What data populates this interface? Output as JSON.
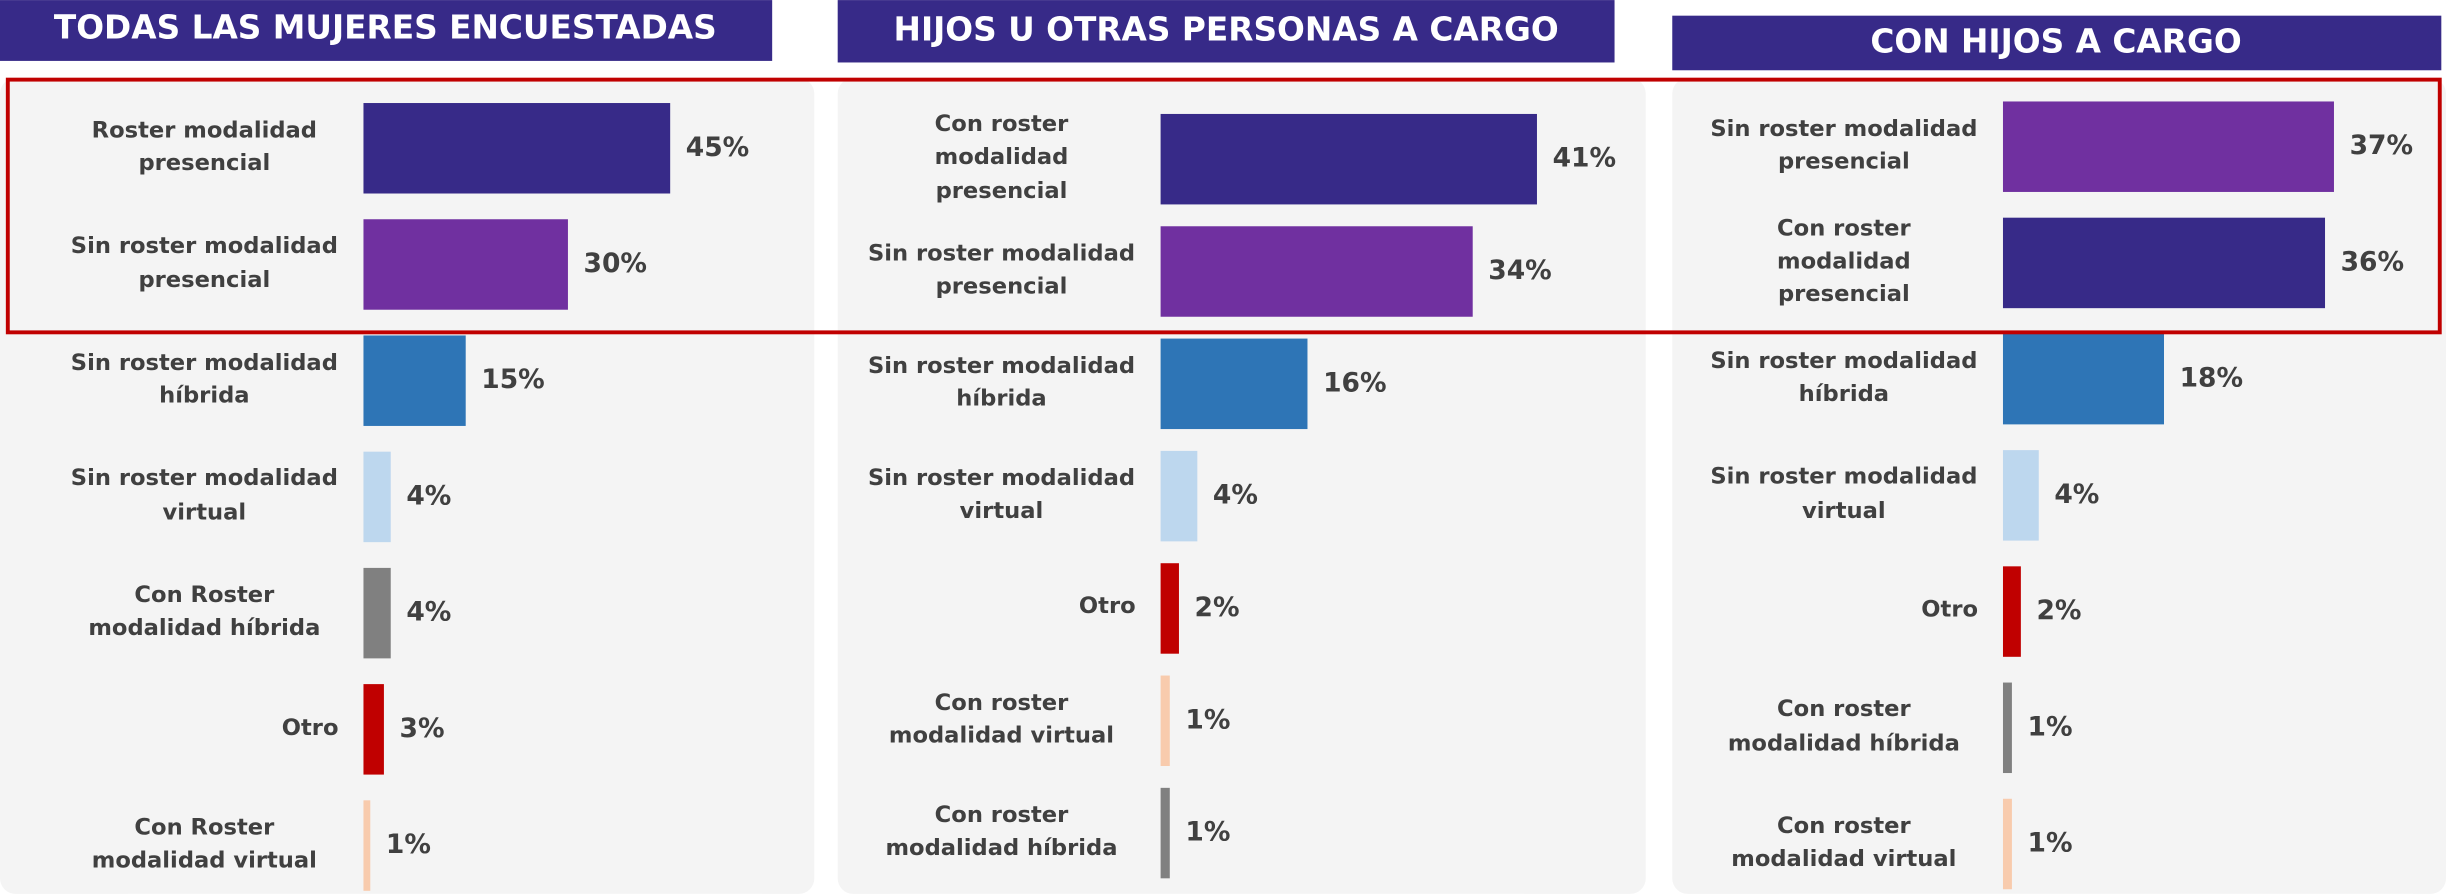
{
  "chart_data": [
    {
      "type": "bar",
      "orientation": "horizontal",
      "title": "TODAS  LAS MUJERES ENCUESTADAS",
      "categories": [
        "Roster modalidad presencial",
        "Sin roster modalidad presencial",
        "Sin roster modalidad híbrida",
        "Sin roster modalidad virtual",
        "Con Roster modalidad híbrida",
        "Otro",
        "Con Roster modalidad virtual"
      ],
      "values": [
        45,
        30,
        15,
        4,
        4,
        3,
        1
      ],
      "value_labels": [
        "45%",
        "30%",
        "15%",
        "4%",
        "4%",
        "3%",
        "1%"
      ],
      "colors": [
        "#372a88",
        "#7030a0",
        "#2e75b6",
        "#bdd7ee",
        "#808080",
        "#c00000",
        "#f8cbad"
      ],
      "xlim": [
        0,
        65
      ]
    },
    {
      "type": "bar",
      "orientation": "horizontal",
      "title": "HIJOS U OTRAS PERSONAS A CARGO",
      "categories": [
        "Con roster modalidad presencial",
        "Sin roster modalidad presencial",
        "Sin roster modalidad híbrida",
        "Sin roster modalidad virtual",
        "Otro",
        "Con roster modalidad virtual",
        "Con roster modalidad híbrida"
      ],
      "values": [
        41,
        34,
        16,
        4,
        2,
        1,
        1
      ],
      "value_labels": [
        "41%",
        "34%",
        "16%",
        "4%",
        "2%",
        "1%",
        "1%"
      ],
      "colors": [
        "#372a88",
        "#7030a0",
        "#2e75b6",
        "#bdd7ee",
        "#c00000",
        "#f8cbad",
        "#808080"
      ],
      "xlim": [
        0,
        52
      ]
    },
    {
      "type": "bar",
      "orientation": "horizontal",
      "title": "CON HIJOS A CARGO",
      "categories": [
        "Sin roster modalidad presencial",
        "Con roster modalidad presencial",
        "Sin roster modalidad híbrida",
        "Sin roster modalidad virtual",
        "Otro",
        "Con roster modalidad híbrida",
        "Con roster modalidad virtual"
      ],
      "values": [
        37,
        36,
        18,
        4,
        2,
        1,
        1
      ],
      "value_labels": [
        "37%",
        "36%",
        "18%",
        "4%",
        "2%",
        "1%",
        "1%"
      ],
      "colors": [
        "#7030a0",
        "#372a88",
        "#2e75b6",
        "#bdd7ee",
        "#c00000",
        "#808080",
        "#f8cbad"
      ],
      "xlim": [
        0,
        49
      ]
    }
  ]
}
